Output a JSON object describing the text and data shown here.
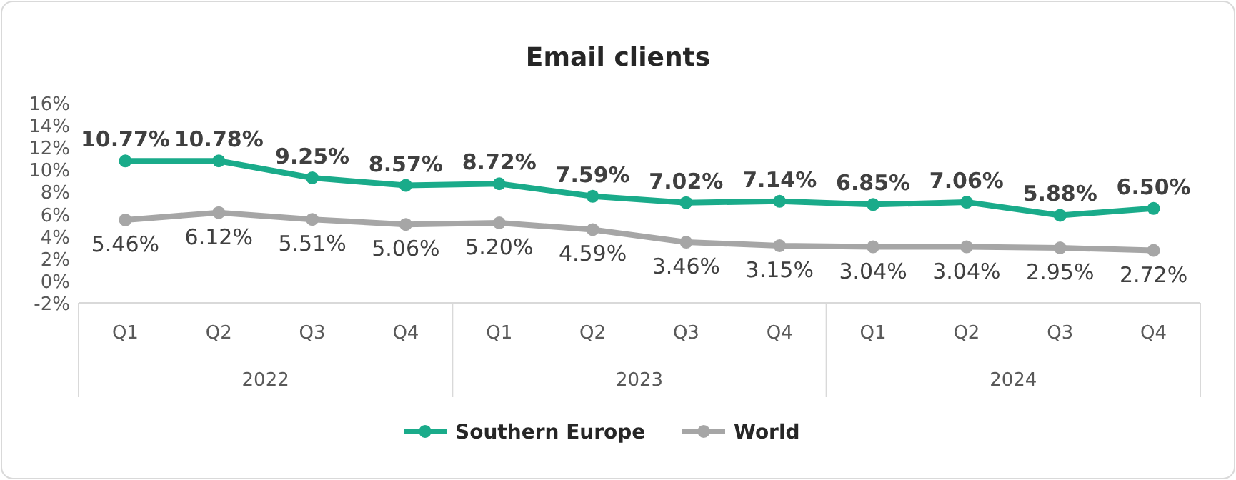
{
  "chart_data": {
    "type": "line",
    "title": "Email clients",
    "categories": [
      "Q1",
      "Q2",
      "Q3",
      "Q4",
      "Q1",
      "Q2",
      "Q3",
      "Q4",
      "Q1",
      "Q2",
      "Q3",
      "Q4"
    ],
    "annotations": [
      "2022",
      "2023",
      "2024"
    ],
    "series": [
      {
        "name": "Southern Europe",
        "color": "#1aab8a",
        "values": [
          10.77,
          10.78,
          9.25,
          8.57,
          8.72,
          7.59,
          7.02,
          7.14,
          6.85,
          7.06,
          5.88,
          6.5
        ],
        "value_labels": [
          "10.77%",
          "10.78%",
          "9.25%",
          "8.57%",
          "8.72%",
          "7.59%",
          "7.02%",
          "7.14%",
          "6.85%",
          "7.06%",
          "5.88%",
          "6.50%"
        ]
      },
      {
        "name": "World",
        "color": "#a6a6a6",
        "values": [
          5.46,
          6.12,
          5.51,
          5.06,
          5.2,
          4.59,
          3.46,
          3.15,
          3.04,
          3.04,
          2.95,
          2.72
        ],
        "value_labels": [
          "5.46%",
          "6.12%",
          "5.51%",
          "5.06%",
          "5.20%",
          "4.59%",
          "3.46%",
          "3.15%",
          "3.04%",
          "3.04%",
          "2.95%",
          "2.72%"
        ]
      }
    ],
    "ylim": [
      -2,
      16
    ],
    "yticks": [
      {
        "value": -2,
        "label": "-2%"
      },
      {
        "value": 0,
        "label": "0%"
      },
      {
        "value": 2,
        "label": "2%"
      },
      {
        "value": 4,
        "label": "4%"
      },
      {
        "value": 6,
        "label": "6%"
      },
      {
        "value": 8,
        "label": "8%"
      },
      {
        "value": 10,
        "label": "10%"
      },
      {
        "value": 12,
        "label": "12%"
      },
      {
        "value": 14,
        "label": "14%"
      },
      {
        "value": 16,
        "label": "16%"
      }
    ],
    "grid": false,
    "legend": "bottom",
    "marker": "circle",
    "line_style": "solid"
  }
}
